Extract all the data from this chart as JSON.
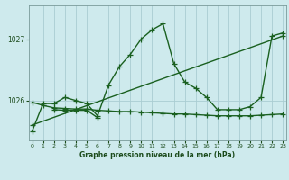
{
  "xlabel": "Graphe pression niveau de la mer (hPa)",
  "background_color": "#ceeaed",
  "grid_color": "#aacdd2",
  "line_color": "#1a6020",
  "ylim": [
    1025.35,
    1027.55
  ],
  "xlim": [
    -0.3,
    23.3
  ],
  "yticks": [
    1026,
    1027
  ],
  "xticks": [
    0,
    1,
    2,
    3,
    4,
    5,
    6,
    7,
    8,
    9,
    10,
    11,
    12,
    13,
    14,
    15,
    16,
    17,
    18,
    19,
    20,
    21,
    22,
    23
  ],
  "series": [
    {
      "x": [
        0,
        1,
        2,
        3,
        4,
        5,
        6,
        7,
        8,
        9,
        10,
        11,
        12,
        13,
        14,
        15,
        16,
        17,
        18,
        19,
        20,
        21,
        22,
        23
      ],
      "y": [
        1025.5,
        1025.95,
        1025.95,
        1026.05,
        1026.0,
        1025.95,
        1025.75,
        1026.25,
        1026.55,
        1026.75,
        1027.0,
        1027.15,
        1027.25,
        1026.6,
        1026.3,
        1026.2,
        1026.05,
        1025.85,
        1025.85,
        1025.85,
        1025.9,
        1026.05,
        1027.05,
        1027.1
      ]
    },
    {
      "x": [
        0,
        1,
        2,
        3,
        4,
        5,
        6,
        7,
        8,
        9,
        10,
        11,
        12,
        13,
        14,
        15,
        16,
        17,
        18,
        19,
        20,
        21,
        22,
        23
      ],
      "y": [
        1025.97,
        1025.92,
        1025.88,
        1025.87,
        1025.86,
        1025.86,
        1025.84,
        1025.83,
        1025.82,
        1025.82,
        1025.81,
        1025.8,
        1025.79,
        1025.78,
        1025.78,
        1025.77,
        1025.76,
        1025.75,
        1025.75,
        1025.75,
        1025.75,
        1025.76,
        1025.77,
        1025.78
      ]
    },
    {
      "x": [
        0,
        23
      ],
      "y": [
        1025.6,
        1027.05
      ]
    },
    {
      "x": [
        2,
        3,
        4,
        5,
        6
      ],
      "y": [
        1025.85,
        1025.84,
        1025.84,
        1025.84,
        1025.72
      ]
    }
  ],
  "marker": "+",
  "markersize": 4,
  "linewidth": 1.0
}
